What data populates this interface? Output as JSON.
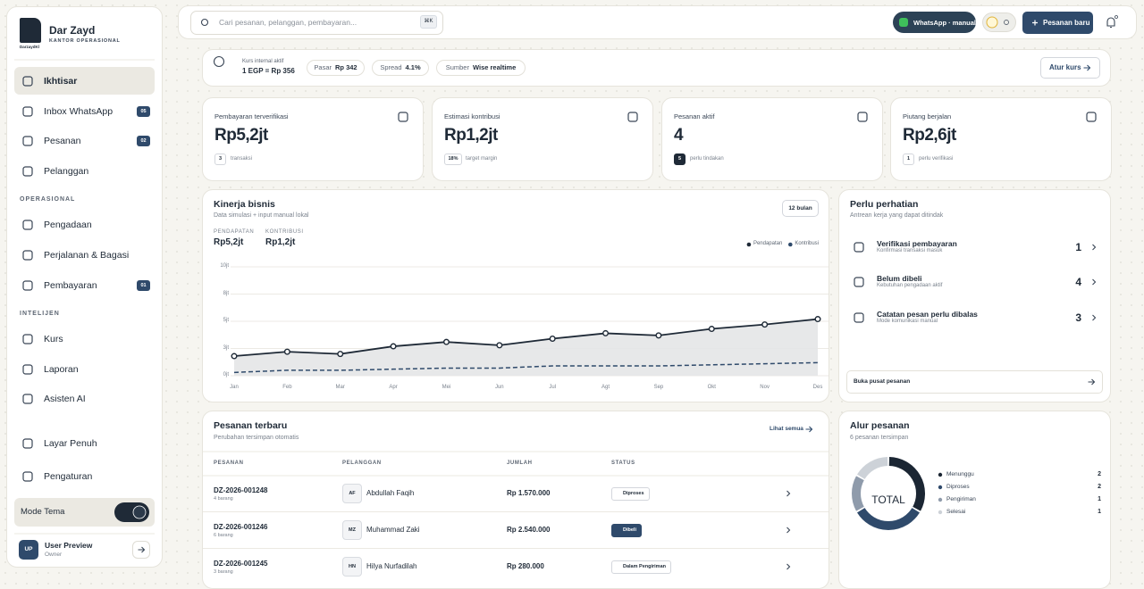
{
  "sidebar": {
    "brand": {
      "logo_text": "DarzaydKl",
      "name": "Dar Zayd",
      "tagline": "KANTOR OPERASIONAL"
    },
    "nav": [
      {
        "label": "Ikhtisar"
      },
      {
        "label": "Inbox WhatsApp",
        "badge": "05"
      },
      {
        "label": "Pesanan",
        "badge": "02"
      },
      {
        "label": "Pelanggan"
      }
    ],
    "sections": [
      {
        "title": "OPERASIONAL",
        "items": [
          {
            "label": "Pengadaan"
          },
          {
            "label": "Perjalanan & Bagasi"
          },
          {
            "label": "Pembayaran",
            "badge": "01"
          }
        ]
      },
      {
        "title": "INTELIJEN",
        "items": [
          {
            "label": "Kurs"
          },
          {
            "label": "Laporan"
          },
          {
            "label": "Asisten AI"
          }
        ]
      }
    ],
    "footer_nav": [
      {
        "label": "Layar Penuh"
      },
      {
        "label": "Pengaturan"
      }
    ],
    "theme_toggle": "Mode Tema",
    "user": {
      "initials": "UP",
      "name": "User Preview",
      "role": "Owner"
    }
  },
  "topbar": {
    "search_placeholder": "Cari pesanan, pelanggan, pembayaran...",
    "shortcut": "⌘K",
    "whatsapp": "WhatsApp · manual",
    "new_order": "Pesanan baru"
  },
  "rate_bar": {
    "label": "Kurs internal aktif",
    "rate": "1 EGP = Rp 356",
    "chips": [
      {
        "label": "Pasar",
        "value": "Rp 342"
      },
      {
        "label": "Spread",
        "value": "4.1%"
      },
      {
        "label": "Sumber",
        "value": "Wise realtime"
      }
    ],
    "action": "Atur kurs"
  },
  "stats": [
    {
      "label": "Pembayaran terverifikasi",
      "value": "Rp5,2jt",
      "badge": "3",
      "note": "transaksi"
    },
    {
      "label": "Estimasi kontribusi",
      "value": "Rp1,2jt",
      "badge": "18%",
      "note": "target margin"
    },
    {
      "label": "Pesanan aktif",
      "value": "4",
      "badge": "5",
      "note": "perlu tindakan"
    },
    {
      "label": "Piutang berjalan",
      "value": "Rp2,6jt",
      "badge": "1",
      "note": "perlu verifikasi"
    }
  ],
  "performance": {
    "title": "Kinerja bisnis",
    "subtitle": "Data simulasi + input manual lokal",
    "range": "12 bulan",
    "summary": [
      {
        "label": "PENDAPATAN",
        "value": "Rp5,2jt"
      },
      {
        "label": "KONTRIBUSI",
        "value": "Rp1,2jt"
      }
    ],
    "chart": {
      "type": "area",
      "categories": [
        "Jan",
        "Feb",
        "Mar",
        "Apr",
        "Mei",
        "Jun",
        "Jul",
        "Agt",
        "Sep",
        "Okt",
        "Nov",
        "Des"
      ],
      "series": [
        {
          "name": "Pendapatan",
          "color": "#1f2a37",
          "values": [
            1.8,
            2.2,
            2.0,
            2.7,
            3.1,
            2.8,
            3.4,
            3.9,
            3.7,
            4.3,
            4.7,
            5.2
          ]
        },
        {
          "name": "Kontribusi",
          "color": "#2f4a6b",
          "dashed": true,
          "values": [
            0.3,
            0.5,
            0.5,
            0.6,
            0.7,
            0.7,
            0.9,
            0.9,
            0.9,
            1.0,
            1.1,
            1.2
          ]
        }
      ],
      "ylim": [
        0,
        10
      ],
      "yticks": [
        {
          "value": 0,
          "label": "0jt"
        },
        {
          "value": 2.5,
          "label": "3jt"
        },
        {
          "value": 5,
          "label": "5jt"
        },
        {
          "value": 7.5,
          "label": "8jt"
        },
        {
          "value": 10,
          "label": "10jt"
        }
      ],
      "grid": true,
      "legend": "top-right"
    }
  },
  "attention": {
    "title": "Perlu perhatian",
    "subtitle": "Antrean kerja yang dapat ditindak",
    "items": [
      {
        "title": "Verifikasi pembayaran",
        "subtitle": "Konfirmasi transaksi masuk",
        "count": 1
      },
      {
        "title": "Belum dibeli",
        "subtitle": "Kebutuhan pengadaan aktif",
        "count": 4
      },
      {
        "title": "Catatan pesan perlu dibalas",
        "subtitle": "Mode komunikasi manual",
        "count": 3
      }
    ],
    "action": "Buka pusat pesanan"
  },
  "orders": {
    "title": "Pesanan terbaru",
    "subtitle": "Perubahan tersimpan otomatis",
    "action": "Lihat semua",
    "columns": [
      "PESANAN",
      "PELANGGAN",
      "JUMLAH",
      "STATUS"
    ],
    "rows": [
      {
        "id": "DZ-2026-001248",
        "items": "4 barang",
        "initials": "AF",
        "customer": "Abdullah Faqih",
        "amount": "Rp 1.570.000",
        "status": "Diproses"
      },
      {
        "id": "DZ-2026-001246",
        "items": "6 barang",
        "initials": "MZ",
        "customer": "Muhammad Zaki",
        "amount": "Rp 2.540.000",
        "status": "Dibeli"
      },
      {
        "id": "DZ-2026-001245",
        "items": "3 barang",
        "initials": "HN",
        "customer": "Hilya Nurfadilah",
        "amount": "Rp 280.000",
        "status": "Dalam Pengiriman"
      }
    ]
  },
  "flow": {
    "title": "Alur pesanan",
    "subtitle": "6 pesanan tersimpan",
    "center_label": "TOTAL",
    "chart": {
      "type": "donut",
      "categories": [
        "Menunggu",
        "Diproses",
        "Pengiriman",
        "Selesai"
      ],
      "values": [
        2,
        2,
        1,
        1
      ],
      "colors": [
        "#1b2633",
        "#2f4a6b",
        "#8f9bab",
        "#cdd2d8"
      ]
    }
  }
}
